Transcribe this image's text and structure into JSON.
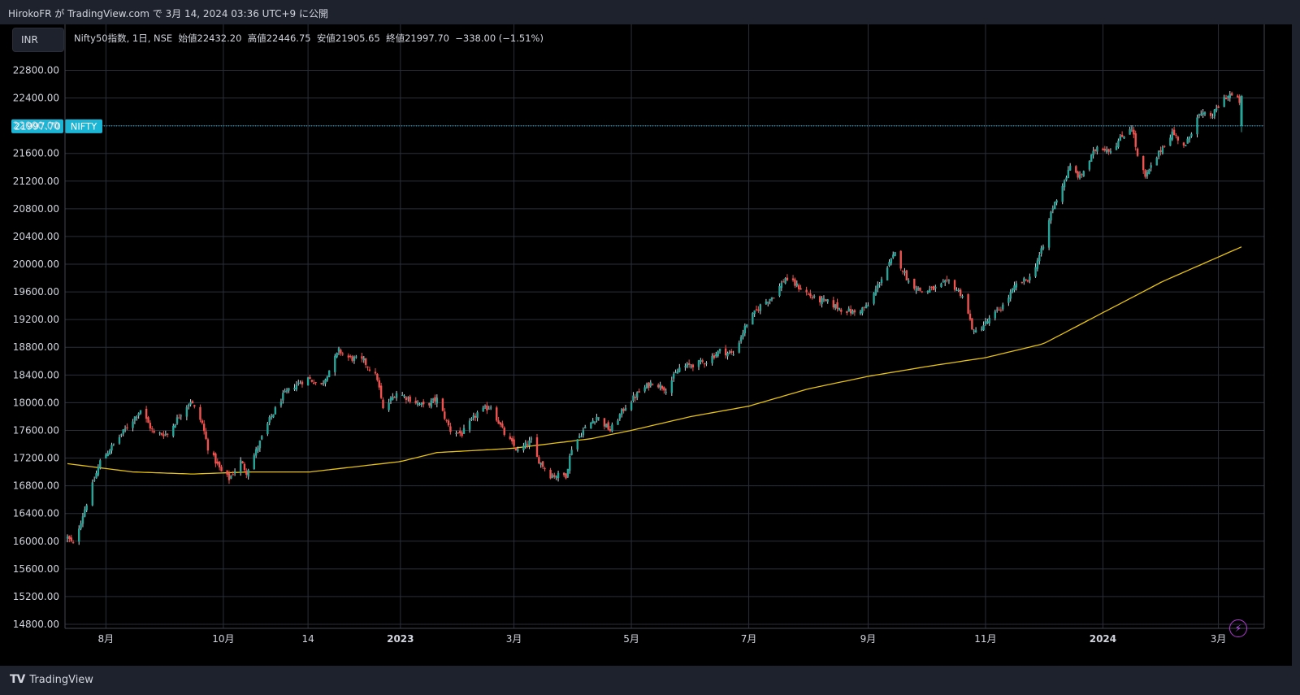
{
  "header": {
    "publisher": "HirokoFR",
    "text": "HirokoFR が TradingView.com で 3月 14, 2024 03:36 UTC+9 に公開"
  },
  "currency_button": "INR",
  "legend": {
    "symbol": "Nifty50指数, 1日, NSE",
    "open_label": "始値",
    "open": "22432.20",
    "high_label": "高値",
    "high": "22446.75",
    "low_label": "安値",
    "low": "21905.65",
    "close_label": "終値",
    "close": "21997.70",
    "change": "−338.00 (−1.51%)"
  },
  "price_tag": {
    "value": "21997.70",
    "symbol": "NIFTY"
  },
  "footer": {
    "brand": "TradingView"
  },
  "colors": {
    "up": "#26a69a",
    "up_wick": "#d1d4dc",
    "down": "#ef5350",
    "ma": "#e8c20c",
    "price_line": "#22c0e0",
    "background": "#000000"
  },
  "chart_data": {
    "type": "candlestick",
    "title": "Nifty50指数, 1日, NSE",
    "y_ticks": [
      "22800.00",
      "22400.00",
      "22000.00",
      "21600.00",
      "21200.00",
      "20800.00",
      "20400.00",
      "20000.00",
      "19600.00",
      "19200.00",
      "18800.00",
      "18400.00",
      "18000.00",
      "17600.00",
      "17200.00",
      "16800.00",
      "16400.00",
      "16000.00",
      "15600.00",
      "15200.00",
      "14800.00"
    ],
    "ylim": [
      14780,
      23150
    ],
    "x_ticks": [
      {
        "label": "8月",
        "date": "2022-08-01",
        "bold": false
      },
      {
        "label": "10月",
        "date": "2022-10-01",
        "bold": false
      },
      {
        "label": "14",
        "date": "2022-11-14",
        "bold": false
      },
      {
        "label": "2023",
        "date": "2023-01-01",
        "bold": true
      },
      {
        "label": "3月",
        "date": "2023-03-01",
        "bold": false
      },
      {
        "label": "5月",
        "date": "2023-05-01",
        "bold": false
      },
      {
        "label": "7月",
        "date": "2023-07-01",
        "bold": false
      },
      {
        "label": "9月",
        "date": "2023-09-01",
        "bold": false
      },
      {
        "label": "11月",
        "date": "2023-11-01",
        "bold": false
      },
      {
        "label": "2024",
        "date": "2024-01-01",
        "bold": true
      },
      {
        "label": "3月",
        "date": "2024-03-01",
        "bold": false
      }
    ],
    "xlim": [
      "2022-07-12",
      "2024-04-10"
    ],
    "last_date": "2024-03-13",
    "price_anchors": [
      [
        "2022-07-12",
        16050
      ],
      [
        "2022-07-15",
        15950
      ],
      [
        "2022-07-22",
        16550
      ],
      [
        "2022-07-29",
        17150
      ],
      [
        "2022-08-05",
        17400
      ],
      [
        "2022-08-12",
        17650
      ],
      [
        "2022-08-19",
        17900
      ],
      [
        "2022-08-26",
        17550
      ],
      [
        "2022-09-02",
        17550
      ],
      [
        "2022-09-09",
        17850
      ],
      [
        "2022-09-14",
        18030
      ],
      [
        "2022-09-20",
        17700
      ],
      [
        "2022-09-23",
        17350
      ],
      [
        "2022-09-30",
        17000
      ],
      [
        "2022-10-04",
        16900
      ],
      [
        "2022-10-10",
        17150
      ],
      [
        "2022-10-13",
        17000
      ],
      [
        "2022-10-18",
        17300
      ],
      [
        "2022-10-25",
        17750
      ],
      [
        "2022-11-01",
        18100
      ],
      [
        "2022-11-07",
        18250
      ],
      [
        "2022-11-14",
        18350
      ],
      [
        "2022-11-21",
        18250
      ],
      [
        "2022-11-30",
        18750
      ],
      [
        "2022-12-05",
        18650
      ],
      [
        "2022-12-13",
        18600
      ],
      [
        "2022-12-20",
        18350
      ],
      [
        "2022-12-23",
        17900
      ],
      [
        "2022-12-30",
        18150
      ],
      [
        "2023-01-06",
        18050
      ],
      [
        "2023-01-13",
        17950
      ],
      [
        "2023-01-20",
        18050
      ],
      [
        "2023-01-27",
        17600
      ],
      [
        "2023-02-02",
        17550
      ],
      [
        "2023-02-10",
        17850
      ],
      [
        "2023-02-17",
        17950
      ],
      [
        "2023-02-24",
        17550
      ],
      [
        "2023-03-03",
        17300
      ],
      [
        "2023-03-10",
        17450
      ],
      [
        "2023-03-13",
        17200
      ],
      [
        "2023-03-20",
        16950
      ],
      [
        "2023-03-28",
        16950
      ],
      [
        "2023-03-31",
        17350
      ],
      [
        "2023-04-06",
        17600
      ],
      [
        "2023-04-13",
        17800
      ],
      [
        "2023-04-20",
        17600
      ],
      [
        "2023-04-28",
        17950
      ],
      [
        "2023-05-05",
        18150
      ],
      [
        "2023-05-12",
        18300
      ],
      [
        "2023-05-19",
        18200
      ],
      [
        "2023-05-26",
        18500
      ],
      [
        "2023-06-02",
        18550
      ],
      [
        "2023-06-09",
        18600
      ],
      [
        "2023-06-16",
        18750
      ],
      [
        "2023-06-23",
        18700
      ],
      [
        "2023-06-30",
        19150
      ],
      [
        "2023-07-07",
        19400
      ],
      [
        "2023-07-14",
        19550
      ],
      [
        "2023-07-20",
        19800
      ],
      [
        "2023-07-28",
        19650
      ],
      [
        "2023-08-04",
        19500
      ],
      [
        "2023-08-11",
        19450
      ],
      [
        "2023-08-18",
        19350
      ],
      [
        "2023-08-25",
        19300
      ],
      [
        "2023-09-01",
        19400
      ],
      [
        "2023-09-08",
        19800
      ],
      [
        "2023-09-15",
        20150
      ],
      [
        "2023-09-22",
        19750
      ],
      [
        "2023-09-29",
        19600
      ],
      [
        "2023-10-06",
        19650
      ],
      [
        "2023-10-13",
        19750
      ],
      [
        "2023-10-20",
        19550
      ],
      [
        "2023-10-26",
        19000
      ],
      [
        "2023-11-03",
        19200
      ],
      [
        "2023-11-10",
        19400
      ],
      [
        "2023-11-17",
        19700
      ],
      [
        "2023-11-24",
        19800
      ],
      [
        "2023-12-01",
        20250
      ],
      [
        "2023-12-05",
        20750
      ],
      [
        "2023-12-08",
        20950
      ],
      [
        "2023-12-15",
        21400
      ],
      [
        "2023-12-20",
        21250
      ],
      [
        "2023-12-29",
        21700
      ],
      [
        "2024-01-05",
        21650
      ],
      [
        "2024-01-16",
        22000
      ],
      [
        "2024-01-19",
        21550
      ],
      [
        "2024-01-23",
        21250
      ],
      [
        "2024-01-31",
        21650
      ],
      [
        "2024-02-06",
        21900
      ],
      [
        "2024-02-13",
        21700
      ],
      [
        "2024-02-19",
        22150
      ],
      [
        "2024-02-27",
        22150
      ],
      [
        "2024-03-04",
        22400
      ],
      [
        "2024-03-07",
        22450
      ],
      [
        "2024-03-12",
        22350
      ],
      [
        "2024-03-13",
        21998
      ]
    ],
    "last_candle": {
      "date": "2024-03-13",
      "open": 22432.2,
      "high": 22446.75,
      "low": 21905.65,
      "close": 21997.7
    },
    "moving_average": {
      "anchors": [
        [
          "2022-07-12",
          17120
        ],
        [
          "2022-08-15",
          17000
        ],
        [
          "2022-09-15",
          16970
        ],
        [
          "2022-10-15",
          17000
        ],
        [
          "2022-11-15",
          17000
        ],
        [
          "2023-01-01",
          17150
        ],
        [
          "2023-01-20",
          17280
        ],
        [
          "2023-02-28",
          17340
        ],
        [
          "2023-04-10",
          17480
        ],
        [
          "2023-05-01",
          17600
        ],
        [
          "2023-06-01",
          17800
        ],
        [
          "2023-07-01",
          17950
        ],
        [
          "2023-08-01",
          18200
        ],
        [
          "2023-09-01",
          18380
        ],
        [
          "2023-10-01",
          18520
        ],
        [
          "2023-11-01",
          18650
        ],
        [
          "2023-12-01",
          18850
        ],
        [
          "2024-01-01",
          19300
        ],
        [
          "2024-02-01",
          19750
        ],
        [
          "2024-03-13",
          20250
        ]
      ]
    }
  }
}
